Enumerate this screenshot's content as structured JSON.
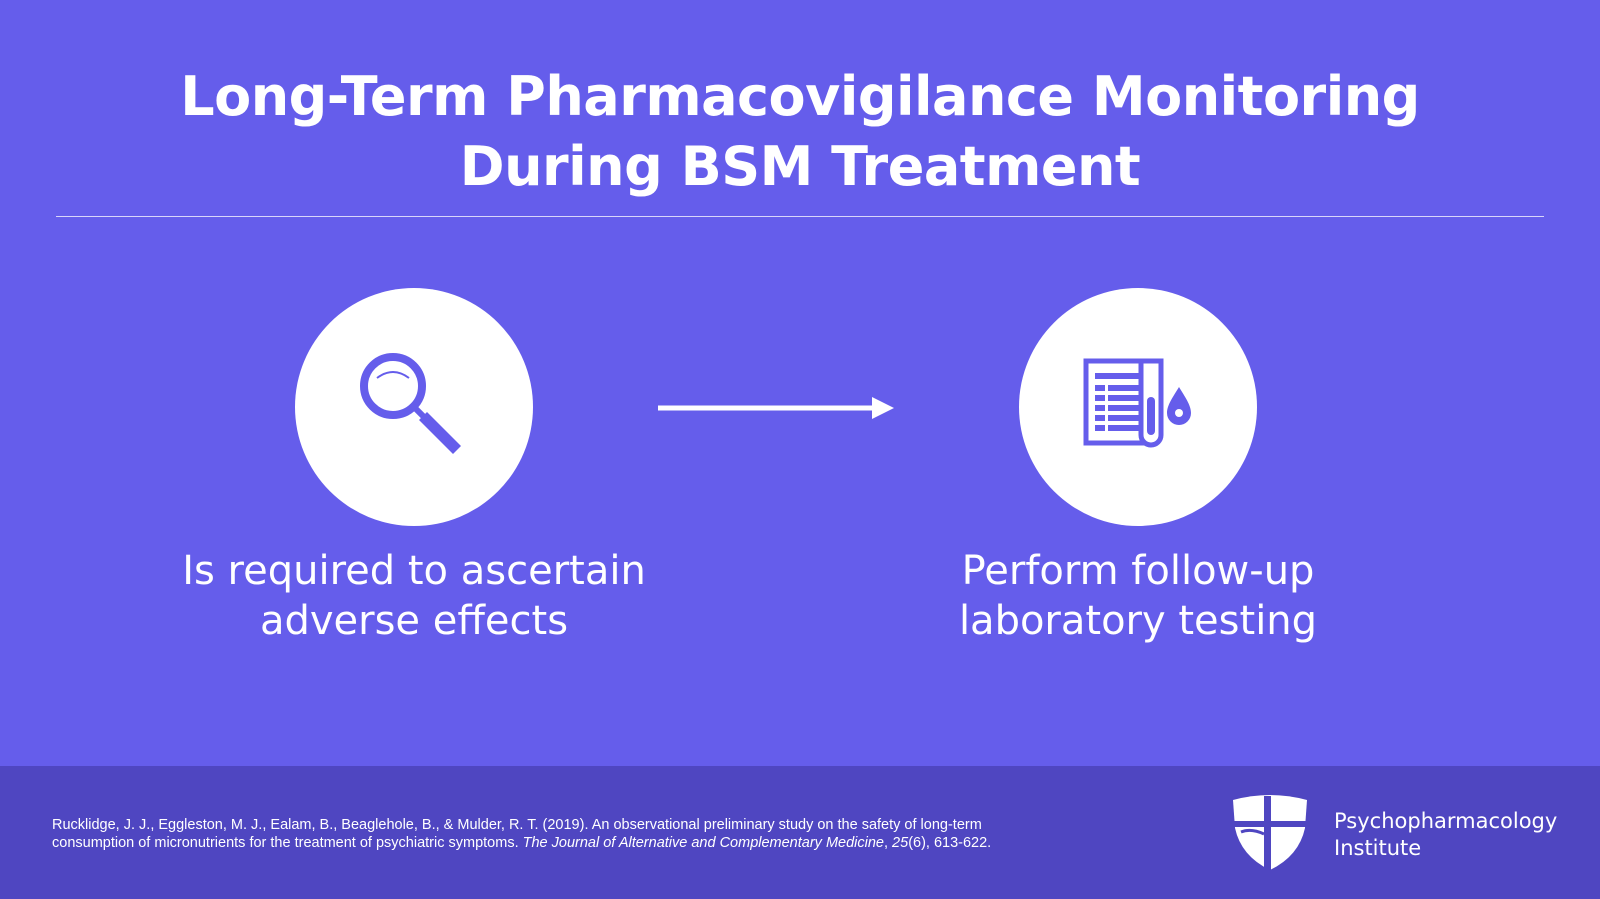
{
  "slide": {
    "title_line1": "Long-Term Pharmacovigilance Monitoring",
    "title_line2": "During BSM Treatment",
    "steps": [
      {
        "icon": "magnifying-glass-icon",
        "caption_line1": "Is required to ascertain",
        "caption_line2": "adverse effects"
      },
      {
        "icon": "lab-report-test-tube-icon",
        "caption_line1": "Perform follow-up",
        "caption_line2": "laboratory testing"
      }
    ],
    "connector_icon": "arrow-right-icon"
  },
  "footer": {
    "citation_line1": "Rucklidge, J. J., Eggleston, M. J., Ealam, B., Beaglehole, B., & Mulder, R. T. (2019). An observational preliminary study on the safety of long-term",
    "citation_line2_prefix": "consumption of micronutrients for the treatment of psychiatric symptoms. ",
    "citation_journal": "The Journal of Alternative and Complementary Medicine",
    "citation_sep": ", ",
    "citation_volume": "25",
    "citation_pages": "(6), 613-622.",
    "logo_line1": "Psychopharmacology",
    "logo_line2": "Institute",
    "logo_icon": "shield-cross-icon"
  },
  "colors": {
    "background": "#655DEB",
    "footer": "#4F46C1",
    "icon": "#655DEB",
    "text": "#FFFFFF"
  }
}
